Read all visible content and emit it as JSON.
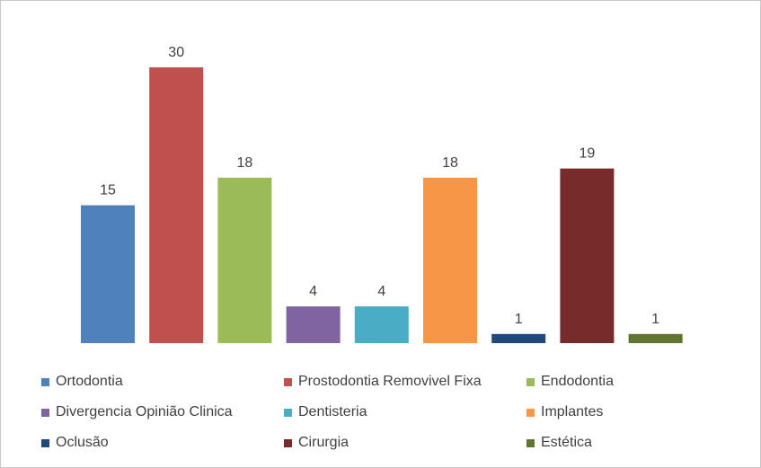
{
  "chart_data": {
    "type": "bar",
    "title": "",
    "xlabel": "",
    "ylabel": "",
    "ylim": [
      0,
      30
    ],
    "grid": false,
    "legend_position": "bottom",
    "data_labels": true,
    "series": [
      {
        "name": "Ortodontia",
        "value": 15,
        "color": "#4f81bd"
      },
      {
        "name": "Prostodontia Removivel Fixa",
        "value": 30,
        "color": "#c0504d"
      },
      {
        "name": "Endodontia",
        "value": 18,
        "color": "#9bbb59"
      },
      {
        "name": "Divergencia Opinião Clinica",
        "value": 4,
        "color": "#8064a2"
      },
      {
        "name": "Dentisteria",
        "value": 4,
        "color": "#4bacc6"
      },
      {
        "name": "Implantes",
        "value": 18,
        "color": "#f79646"
      },
      {
        "name": "Oclusão",
        "value": 1,
        "color": "#1f497d"
      },
      {
        "name": "Cirurgia",
        "value": 19,
        "color": "#772c2a"
      },
      {
        "name": "Estética",
        "value": 1,
        "color": "#5f7530"
      }
    ]
  }
}
